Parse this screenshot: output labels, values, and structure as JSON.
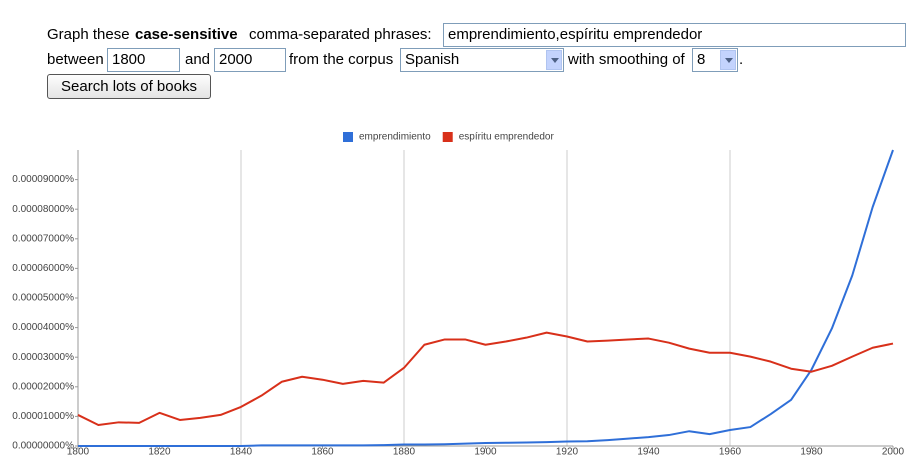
{
  "form": {
    "prompt_start": "Graph these",
    "prompt_bold": "case-sensitive",
    "prompt_end": "comma-separated phrases:",
    "phrases": "emprendimiento,espíritu emprendedor",
    "between": "between",
    "start_year": "1800",
    "and": "and",
    "end_year": "2000",
    "corpus_label": "from the corpus",
    "corpus": "Spanish",
    "smoothing_label": "with smoothing of",
    "smoothing": "8",
    "period": ".",
    "button": "Search lots of books"
  },
  "chart_data": {
    "type": "line",
    "x": [
      1800,
      1805,
      1810,
      1815,
      1820,
      1825,
      1830,
      1835,
      1840,
      1845,
      1850,
      1855,
      1860,
      1865,
      1870,
      1875,
      1880,
      1885,
      1890,
      1895,
      1900,
      1905,
      1910,
      1915,
      1920,
      1925,
      1930,
      1935,
      1940,
      1945,
      1950,
      1955,
      1960,
      1965,
      1970,
      1975,
      1980,
      1985,
      1990,
      1995,
      2000
    ],
    "series": [
      {
        "name": "emprendimiento",
        "color": "#2f6fd8",
        "values": [
          0,
          0,
          0,
          0,
          0,
          0,
          0,
          0,
          0,
          2e-07,
          2e-07,
          2e-07,
          2e-07,
          2e-07,
          2e-07,
          3e-07,
          5e-07,
          5e-07,
          6e-07,
          8e-07,
          1e-06,
          1.1e-06,
          1.2e-06,
          1.3e-06,
          1.5e-06,
          1.6e-06,
          2e-06,
          2.5e-06,
          3e-06,
          3.7e-06,
          5e-06,
          4e-06,
          5.4e-06,
          6.4e-06,
          1.08e-05,
          1.56e-05,
          2.58e-05,
          3.97e-05,
          5.76e-05,
          8.07e-05,
          0.0001
        ]
      },
      {
        "name": "espíritu emprendedor",
        "color": "#d8301a",
        "values": [
          1.05e-05,
          7.1e-06,
          8e-06,
          7.8e-06,
          1.12e-05,
          8.8e-06,
          9.5e-06,
          1.05e-05,
          1.32e-05,
          1.7e-05,
          2.17e-05,
          2.34e-05,
          2.24e-05,
          2.1e-05,
          2.2e-05,
          2.14e-05,
          2.64e-05,
          3.42e-05,
          3.6e-05,
          3.6e-05,
          3.42e-05,
          3.53e-05,
          3.66e-05,
          3.83e-05,
          3.7e-05,
          3.53e-05,
          3.56e-05,
          3.6e-05,
          3.63e-05,
          3.49e-05,
          3.29e-05,
          3.15e-05,
          3.15e-05,
          3.02e-05,
          2.85e-05,
          2.61e-05,
          2.51e-05,
          2.71e-05,
          3.02e-05,
          3.32e-05,
          3.46e-05
        ]
      }
    ],
    "xlim": [
      1800,
      2000
    ],
    "xticks": [
      1800,
      1820,
      1840,
      1860,
      1880,
      1900,
      1920,
      1940,
      1960,
      1980,
      2000
    ],
    "ylim": [
      0,
      0.0001
    ],
    "yticks": [
      {
        "value": 0,
        "label": "0.00000000%"
      },
      {
        "value": 1e-05,
        "label": "0.00001000%"
      },
      {
        "value": 2e-05,
        "label": "0.00002000%"
      },
      {
        "value": 3e-05,
        "label": "0.00003000%"
      },
      {
        "value": 4e-05,
        "label": "0.00004000%"
      },
      {
        "value": 5e-05,
        "label": "0.00005000%"
      },
      {
        "value": 6e-05,
        "label": "0.00006000%"
      },
      {
        "value": 7e-05,
        "label": "0.00007000%"
      },
      {
        "value": 8e-05,
        "label": "0.00008000%"
      },
      {
        "value": 9e-05,
        "label": "0.00009000%"
      }
    ],
    "grid": true
  }
}
